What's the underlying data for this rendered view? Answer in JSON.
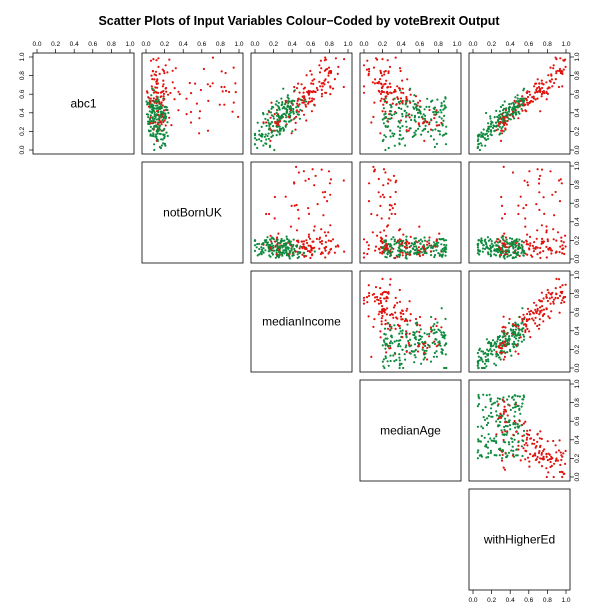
{
  "title": "Scatter Plots of Input Variables Colour−Coded by voteBrexit Output",
  "tick_labels": [
    "0.0",
    "0.2",
    "0.4",
    "0.6",
    "0.8",
    "1.0"
  ],
  "colors": {
    "group_true": "#e0140f",
    "group_false": "#0f8a3e",
    "axes": "#000000",
    "background": "#ffffff"
  },
  "chart_data": {
    "type": "scatter",
    "layout": "upper-triangle scatterplot matrix",
    "variables": [
      "abc1",
      "notBornUK",
      "medianIncome",
      "medianAge",
      "withHigherEd"
    ],
    "axis_range": [
      0,
      1
    ],
    "grid": false,
    "legend": "none",
    "panels": [
      {
        "x": "notBornUK",
        "y": "abc1",
        "description": "green cluster x 0.05-0.3, y 0.1-0.7; red points spread to x 1.0, y 0.2-1.0"
      },
      {
        "x": "medianIncome",
        "y": "abc1",
        "description": "positive correlation, points x 0.05-1.0, y 0.1-1.0"
      },
      {
        "x": "medianAge",
        "y": "abc1",
        "description": "weak negative trend, points x 0.05-1.0, y 0.05-0.9"
      },
      {
        "x": "withHigherEd",
        "y": "abc1",
        "description": "strong positive linear trend, points x 0.05-1.0, y 0.1-1.0"
      },
      {
        "x": "medianIncome",
        "y": "notBornUK",
        "description": "most points y 0.0-0.25, red points rise to y 1.0 at high x"
      },
      {
        "x": "medianAge",
        "y": "notBornUK",
        "description": "decreasing curve, red points y 0.5-0.9 at low x, flattening near 0 by x 0.9"
      },
      {
        "x": "withHigherEd",
        "y": "notBornUK",
        "description": "most points y 0.0-0.25, red points rise to y 0.9 at high x"
      },
      {
        "x": "medianAge",
        "y": "medianIncome",
        "description": "negative trend, points x 0.05-0.9, y 0.05-0.9"
      },
      {
        "x": "withHigherEd",
        "y": "medianIncome",
        "description": "positive trend, points x 0.1-1.0, y 0.05-1.0"
      },
      {
        "x": "withHigherEd",
        "y": "medianAge",
        "description": "green points x 0.05-0.5, y 0.05-0.95; red points spread to x 1.0, lower y"
      }
    ],
    "series": [
      {
        "values_generated": true
      },
      {
        "values_generated": true
      }
    ]
  }
}
